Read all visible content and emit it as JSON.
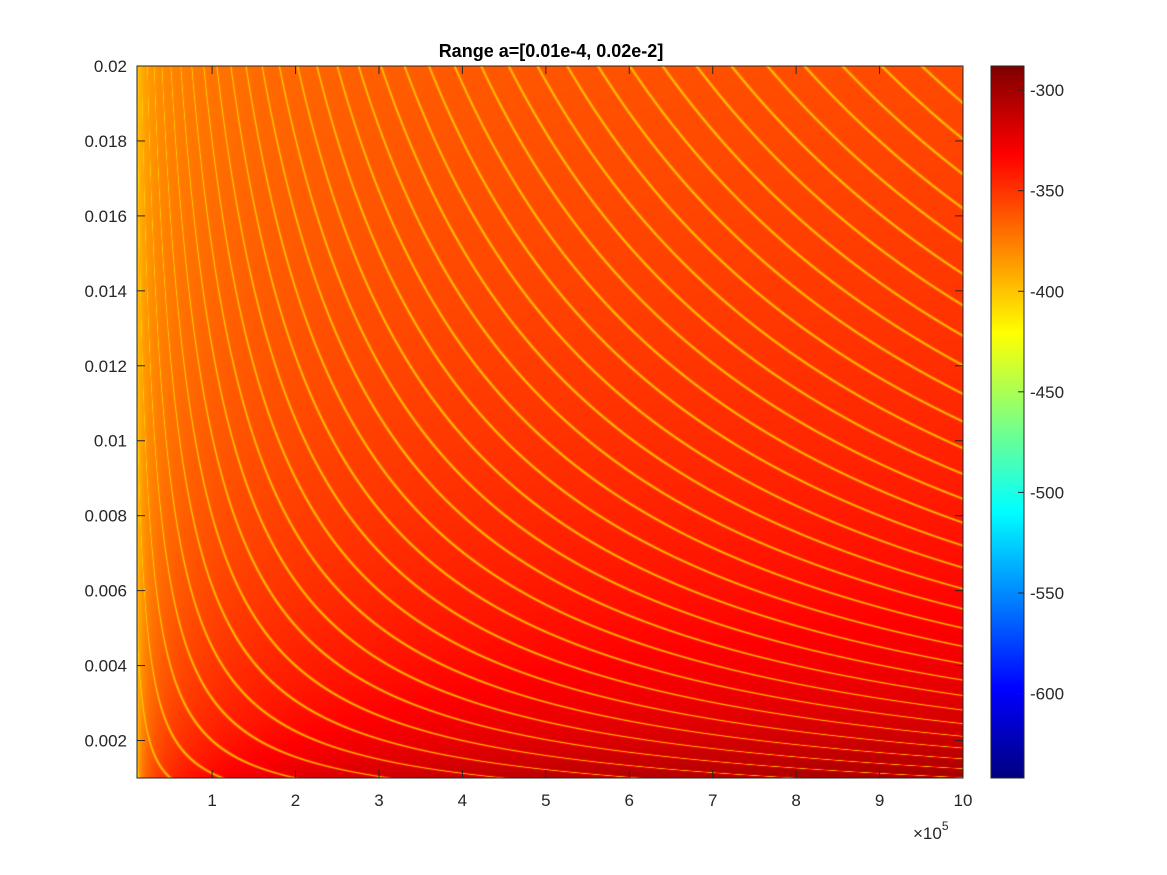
{
  "chart_data": {
    "type": "heatmap",
    "title": "Range a=[0.01e-4, 0.02e-2]",
    "xlabel": "",
    "ylabel": "",
    "x_multiplier": "×10",
    "x_multiplier_exponent": "5",
    "xlim": [
      0.1,
      10
    ],
    "ylim": [
      0.001,
      0.02
    ],
    "x_ticks": [
      1,
      2,
      3,
      4,
      5,
      6,
      7,
      8,
      9,
      10
    ],
    "x_tick_labels": [
      "1",
      "2",
      "3",
      "4",
      "5",
      "6",
      "7",
      "8",
      "9",
      "10"
    ],
    "y_ticks": [
      0.002,
      0.004,
      0.006,
      0.008,
      0.01,
      0.012,
      0.014,
      0.016,
      0.018,
      0.02
    ],
    "y_tick_labels": [
      "0.002",
      "0.004",
      "0.006",
      "0.008",
      "0.01",
      "0.012",
      "0.014",
      "0.016",
      "0.018",
      "0.02"
    ],
    "colormap": "jet",
    "clim": [
      -642,
      -288
    ],
    "colorbar_ticks": [
      -300,
      -350,
      -400,
      -450,
      -500,
      -550,
      -600
    ],
    "colorbar_tick_labels": [
      "-300",
      "-350",
      "-400",
      "-450",
      "-500",
      "-550",
      "-600"
    ],
    "field": {
      "description_of_surface": "value increases toward large x and small y; contour ridges follow x*y = const",
      "value_low_corner": -405,
      "value_high_corner": -300,
      "ridge_value": -405,
      "ridge_count": 40
    },
    "grid": false,
    "legend": "none"
  }
}
